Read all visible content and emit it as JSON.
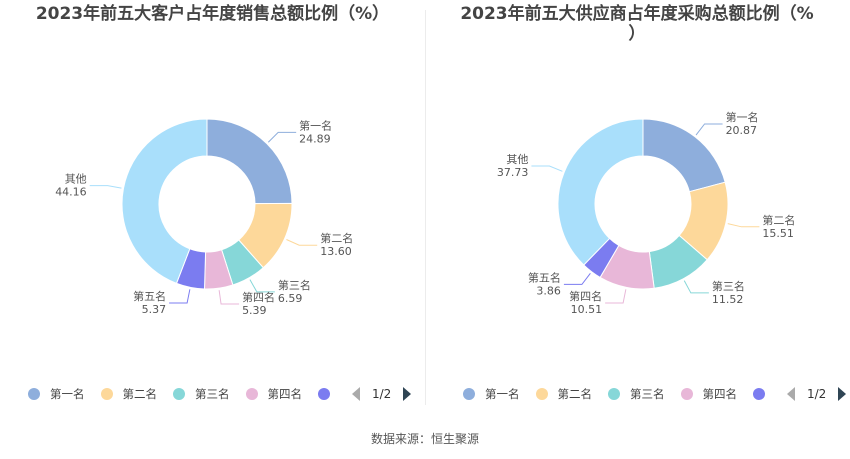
{
  "colors": [
    "#8eaedc",
    "#fdd89a",
    "#86d7d8",
    "#e8b7d8",
    "#7b7cf0",
    "#a9dffb"
  ],
  "chart_data": [
    {
      "type": "pie",
      "title": "2023年前五大客户占年度销售总额比例（%）",
      "categories": [
        "第一名",
        "第二名",
        "第三名",
        "第四名",
        "第五名",
        "其他"
      ],
      "values": [
        24.89,
        13.6,
        6.59,
        5.39,
        5.37,
        44.16
      ],
      "value_labels": [
        "24.89",
        "13.60",
        "6.59",
        "5.39",
        "5.37",
        "44.16"
      ],
      "legend_items": [
        "第一名",
        "第二名",
        "第三名",
        "第四名"
      ],
      "legend_page": "1/2",
      "legend_placement": "bottom"
    },
    {
      "type": "pie",
      "title_line1": "2023年前五大供应商占年度采购总额比例（%",
      "title_line2": "）",
      "categories": [
        "第一名",
        "第二名",
        "第三名",
        "第四名",
        "第五名",
        "其他"
      ],
      "values": [
        20.87,
        15.51,
        11.52,
        10.51,
        3.86,
        37.73
      ],
      "value_labels": [
        "20.87",
        "15.51",
        "11.52",
        "10.51",
        "3.86",
        "37.73"
      ],
      "legend_items": [
        "第一名",
        "第二名",
        "第三名",
        "第四名"
      ],
      "legend_page": "1/2",
      "legend_placement": "bottom"
    }
  ],
  "footer": "数据来源：恒生聚源"
}
